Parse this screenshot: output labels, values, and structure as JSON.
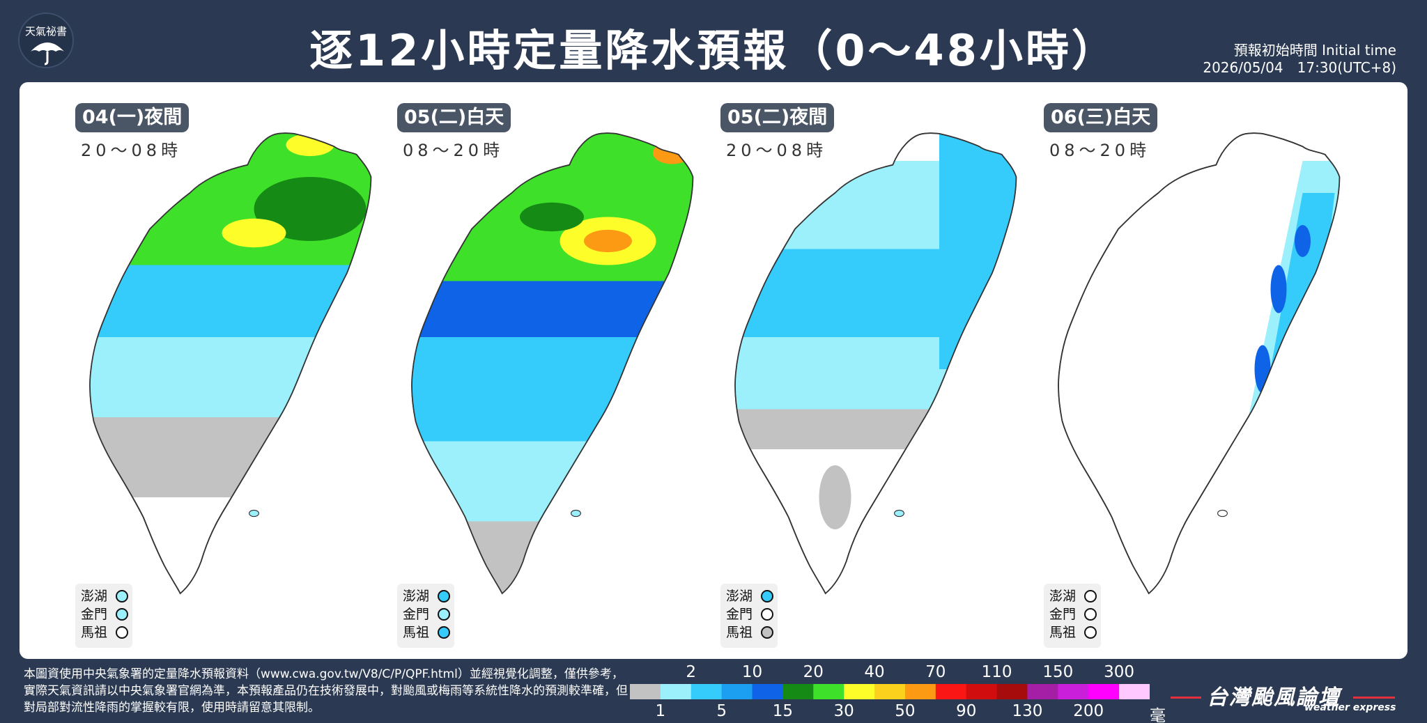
{
  "header": {
    "logo_text": "天氣祕書",
    "title": "逐12小時定量降水預報（0～48小時）",
    "init_label": "預報初始時間 Initial time",
    "init_value": "2026/05/04　17:30(UTC+8)"
  },
  "panels": [
    {
      "label": "04(一)夜間",
      "hours": "20～08時",
      "islands": {
        "penghu": "1-2 mm",
        "kinmen": "1-2 mm",
        "matsu": "0 mm"
      }
    },
    {
      "label": "05(二)白天",
      "hours": "08～20時",
      "islands": {
        "penghu": "2-5 mm",
        "kinmen": "1-2 mm",
        "matsu": "2-5 mm"
      }
    },
    {
      "label": "05(二)夜間",
      "hours": "20～08時",
      "islands": {
        "penghu": "2-5 mm",
        "kinmen": "0 mm",
        "matsu": "<1 mm"
      }
    },
    {
      "label": "06(三)白天",
      "hours": "08～20時",
      "islands": {
        "penghu": "0 mm",
        "kinmen": "0 mm",
        "matsu": "0 mm"
      }
    }
  ],
  "island_names": [
    "澎湖",
    "金門",
    "馬祖"
  ],
  "colors": {
    "background": "#2b3a52",
    "panel": "#ffffff",
    "brand_red": "#e4313d"
  },
  "legend": {
    "top_labels": [
      "2",
      "10",
      "20",
      "40",
      "70",
      "110",
      "150",
      "300"
    ],
    "bottom_labels": [
      "1",
      "5",
      "15",
      "30",
      "50",
      "90",
      "130",
      "200"
    ],
    "unit": "毫米",
    "colors": [
      "#c2c2c2",
      "#9cf0fc",
      "#35ccfc",
      "#1c9ff0",
      "#0f63e6",
      "#158b15",
      "#3fe02a",
      "#fdfd2a",
      "#fcd11e",
      "#fc9a14",
      "#fb1616",
      "#d10d0d",
      "#a60c0c",
      "#a51fa6",
      "#c91fda",
      "#ff00ff",
      "#ffc8ff"
    ]
  },
  "footer": {
    "note": "本圖資使用中央氣象署的定量降水預報資料（www.cwa.gov.tw/V8/C/P/QPF.html）並經視覺化調整，僅供參考，實際天氣資訊請以中央氣象署官網為準，本預報產品仍在技術發展中，對颱風或梅雨等系統性降水的預測較準確，但對局部對流性降雨的掌握較有限，使用時請留意其限制。",
    "brand": "台灣颱風論壇",
    "brand_sub": "weather express"
  }
}
